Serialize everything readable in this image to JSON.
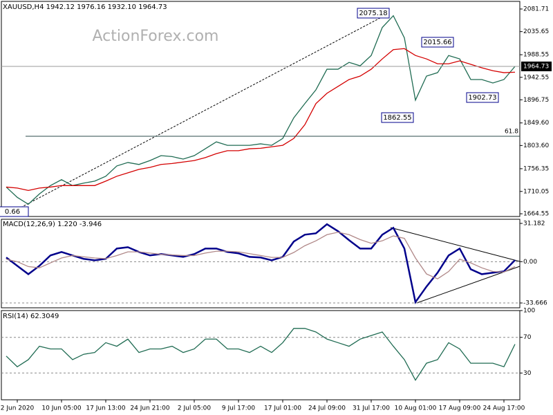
{
  "chart_data": [
    {
      "type": "line",
      "title": "XAUUSD,H4  1942.12 1976.16 1932.10 1964.73",
      "watermark": "ActionForex.com",
      "ylim": [
        1659.0,
        2097.2
      ],
      "yticks": [
        2081.71,
        2035.65,
        1988.55,
        1942.55,
        1896.75,
        {
          "value": 1849.6,
          "label": "1849.60"
        },
        {
          "value": 1803.6,
          "label": "1803.60"
        },
        1756.35,
        1710.05,
        1664.55
      ],
      "grid": false,
      "last_price": 1964.73,
      "fib_line": {
        "price": 1822.4,
        "text": "61.8"
      },
      "annotations": [
        "2075.18",
        "2015.66",
        "1862.55",
        "1902.73",
        "0.66"
      ],
      "series": [
        {
          "name": "Close",
          "color": "#1f6b52",
          "values": [
            1719,
            1698,
            1684,
            1705,
            1722,
            1734,
            1722,
            1727,
            1731,
            1741,
            1762,
            1769,
            1765,
            1773,
            1783,
            1781,
            1776,
            1783,
            1797,
            1811,
            1804,
            1804,
            1804,
            1807,
            1804,
            1818,
            1860,
            1889,
            1917,
            1959,
            1959,
            1973,
            1966,
            1987,
            2044,
            2068,
            2023,
            1896,
            1945,
            1952,
            1987,
            1980,
            1938,
            1938,
            1931,
            1938,
            1964.73
          ]
        },
        {
          "name": "MA",
          "color": "#d40000",
          "values": [
            1719,
            1717,
            1712,
            1717,
            1719,
            1722,
            1722,
            1722,
            1722,
            1731,
            1741,
            1748,
            1755,
            1759,
            1765,
            1767,
            1770,
            1773,
            1779,
            1787,
            1793,
            1793,
            1797,
            1798,
            1801,
            1804,
            1818,
            1846,
            1889,
            1910,
            1924,
            1938,
            1945,
            1959,
            1980,
            1999,
            2001,
            1987,
            1980,
            1970,
            1970,
            1976,
            1969,
            1962,
            1956,
            1952,
            1953
          ]
        }
      ]
    },
    {
      "type": "line",
      "title": "MACD(12,26,9) 1.220 -3.946",
      "ylim": [
        -37.6,
        34.57
      ],
      "yticks": [
        31.182,
        {
          "value": 0,
          "label": "0.00"
        },
        -33.666
      ],
      "grid": true,
      "series": [
        {
          "name": "MACD",
          "color": "#00008b",
          "values": [
            3.4,
            -3.4,
            -10.2,
            -3.4,
            5.1,
            7.9,
            5.1,
            2.3,
            1.1,
            2.3,
            10.7,
            11.8,
            7.9,
            5.1,
            6.2,
            5.1,
            3.9,
            6.2,
            10.7,
            10.7,
            7.9,
            6.8,
            3.9,
            3.4,
            1.1,
            3.9,
            16.4,
            22.0,
            23.1,
            30.5,
            24.8,
            17.5,
            10.7,
            10.7,
            22.0,
            27.6,
            10.7,
            -33.0,
            -20.3,
            -9.0,
            5.1,
            10.7,
            -6.2,
            -10.2,
            -9.0,
            -7.9,
            1.22
          ]
        },
        {
          "name": "Signal",
          "color": "#b08888",
          "values": [
            2,
            0,
            -4,
            -5,
            -1,
            3,
            5,
            4,
            3,
            2.5,
            5,
            8,
            8,
            7,
            6,
            5.5,
            5,
            5,
            7,
            8.5,
            8.5,
            8,
            6.5,
            5,
            3.5,
            3.5,
            7.5,
            13,
            17,
            22,
            24,
            22,
            18,
            15,
            17,
            21,
            19,
            3,
            -10,
            -14,
            -8,
            2,
            -1,
            -5,
            -8,
            -8.5,
            -3.946
          ]
        }
      ]
    },
    {
      "type": "line",
      "title": "RSI(14) 62.3049",
      "ylim": [
        0,
        100
      ],
      "yticks": [
        100,
        70,
        30
      ],
      "grid": true,
      "categories": [
        null,
        "2 Jun 2020",
        null,
        null,
        null,
        "10 Jun 05:00",
        null,
        null,
        null,
        "17 Jun 13:00",
        null,
        null,
        null,
        "24 Jun 21:00",
        null,
        null,
        null,
        "2 Jul 05:00",
        null,
        null,
        null,
        "9 Jul 17:00",
        null,
        null,
        null,
        "17 Jul 01:00",
        null,
        null,
        null,
        "24 Jul 09:00",
        null,
        null,
        null,
        "31 Jul 17:00",
        null,
        null,
        null,
        "10 Aug 01:00",
        null,
        null,
        null,
        "17 Aug 09:00",
        null,
        null,
        null,
        "24 Aug 17:00",
        null
      ],
      "series": [
        {
          "name": "RSI",
          "color": "#1f6b52",
          "values": [
            49,
            37,
            45,
            60,
            57,
            57,
            45,
            51,
            53,
            64,
            60,
            68,
            53,
            57,
            57,
            60,
            53,
            57,
            68,
            68,
            57,
            57,
            53,
            60,
            53,
            64,
            80,
            80,
            76,
            68,
            64,
            60,
            68,
            72,
            76,
            60,
            45,
            22,
            41,
            45,
            64,
            57,
            41,
            41,
            41,
            37,
            62.3049
          ]
        }
      ]
    }
  ]
}
